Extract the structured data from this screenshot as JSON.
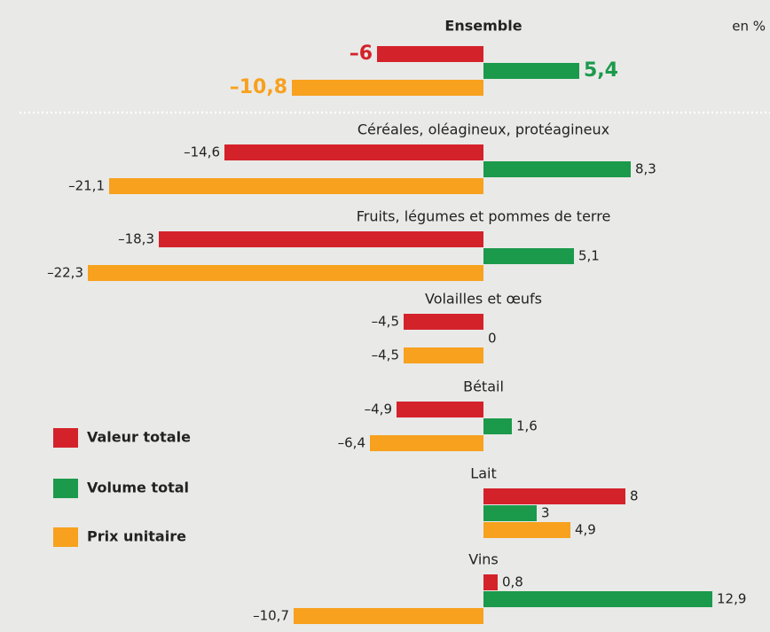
{
  "chart_data": {
    "type": "bar",
    "orientation": "horizontal",
    "unit": "en %",
    "categories": [
      "Ensemble",
      "Céréales, oléagineux, protéagineux",
      "Fruits, légumes et pommes de terre",
      "Volailles et œufs",
      "Bétail",
      "Lait",
      "Vins"
    ],
    "series": [
      {
        "name": "Valeur totale",
        "color": "#d4222b",
        "values": [
          -6,
          -14.6,
          -18.3,
          -4.5,
          -4.9,
          8,
          0.8
        ],
        "value_labels": [
          "–6",
          "–14,6",
          "–18,3",
          "–4,5",
          "–4,9",
          "8",
          "0,8"
        ]
      },
      {
        "name": "Volume total",
        "color": "#1b9a4b",
        "values": [
          5.4,
          8.3,
          5.1,
          0,
          1.6,
          3,
          12.9
        ],
        "value_labels": [
          "5,4",
          "8,3",
          "5,1",
          "0",
          "1,6",
          "3",
          "12,9"
        ]
      },
      {
        "name": "Prix unitaire",
        "color": "#f7a11e",
        "values": [
          -10.8,
          -21.1,
          -22.3,
          -4.5,
          -6.4,
          4.9,
          -10.7
        ],
        "value_labels": [
          "–10,8",
          "–21,1",
          "–22,3",
          "–4,5",
          "–6,4",
          "4,9",
          "–10,7"
        ]
      }
    ],
    "xlim": [
      -24,
      15.5
    ]
  }
}
